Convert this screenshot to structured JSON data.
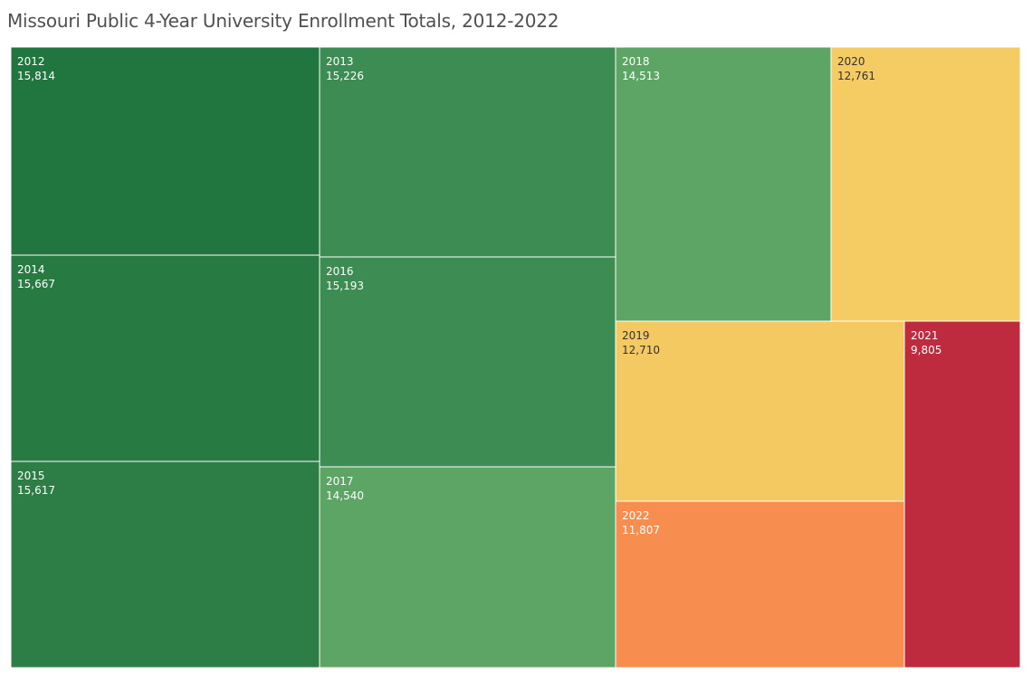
{
  "title": "Missouri Public 4-Year University Enrollment Totals, 2012-2022",
  "chart_data": {
    "type": "treemap",
    "title": "Missouri Public 4-Year University Enrollment Totals, 2012-2022",
    "color_scale": {
      "type": "diverging",
      "low_color": "#be2a3e",
      "mid_color": "#f5ca63",
      "high_color": "#20763e"
    },
    "items": [
      {
        "year": "2012",
        "value": 15814,
        "label": "15,814",
        "color": "#20763e"
      },
      {
        "year": "2013",
        "value": 15226,
        "label": "15,226",
        "color": "#3c8c53"
      },
      {
        "year": "2014",
        "value": 15667,
        "label": "15,667",
        "color": "#277b42"
      },
      {
        "year": "2015",
        "value": 15617,
        "label": "15,617",
        "color": "#2c7e46"
      },
      {
        "year": "2016",
        "value": 15193,
        "label": "15,193",
        "color": "#3c8c53"
      },
      {
        "year": "2017",
        "value": 14540,
        "label": "14,540",
        "color": "#5ca565"
      },
      {
        "year": "2018",
        "value": 14513,
        "label": "14,513",
        "color": "#5ca565"
      },
      {
        "year": "2019",
        "value": 12710,
        "label": "12,710",
        "color": "#f5c962"
      },
      {
        "year": "2020",
        "value": 12761,
        "label": "12,761",
        "color": "#f5cb63"
      },
      {
        "year": "2021",
        "value": 9805,
        "label": "9,805",
        "color": "#be2a3e"
      },
      {
        "year": "2022",
        "value": 11807,
        "label": "11,807",
        "color": "#f78d4e"
      }
    ]
  }
}
